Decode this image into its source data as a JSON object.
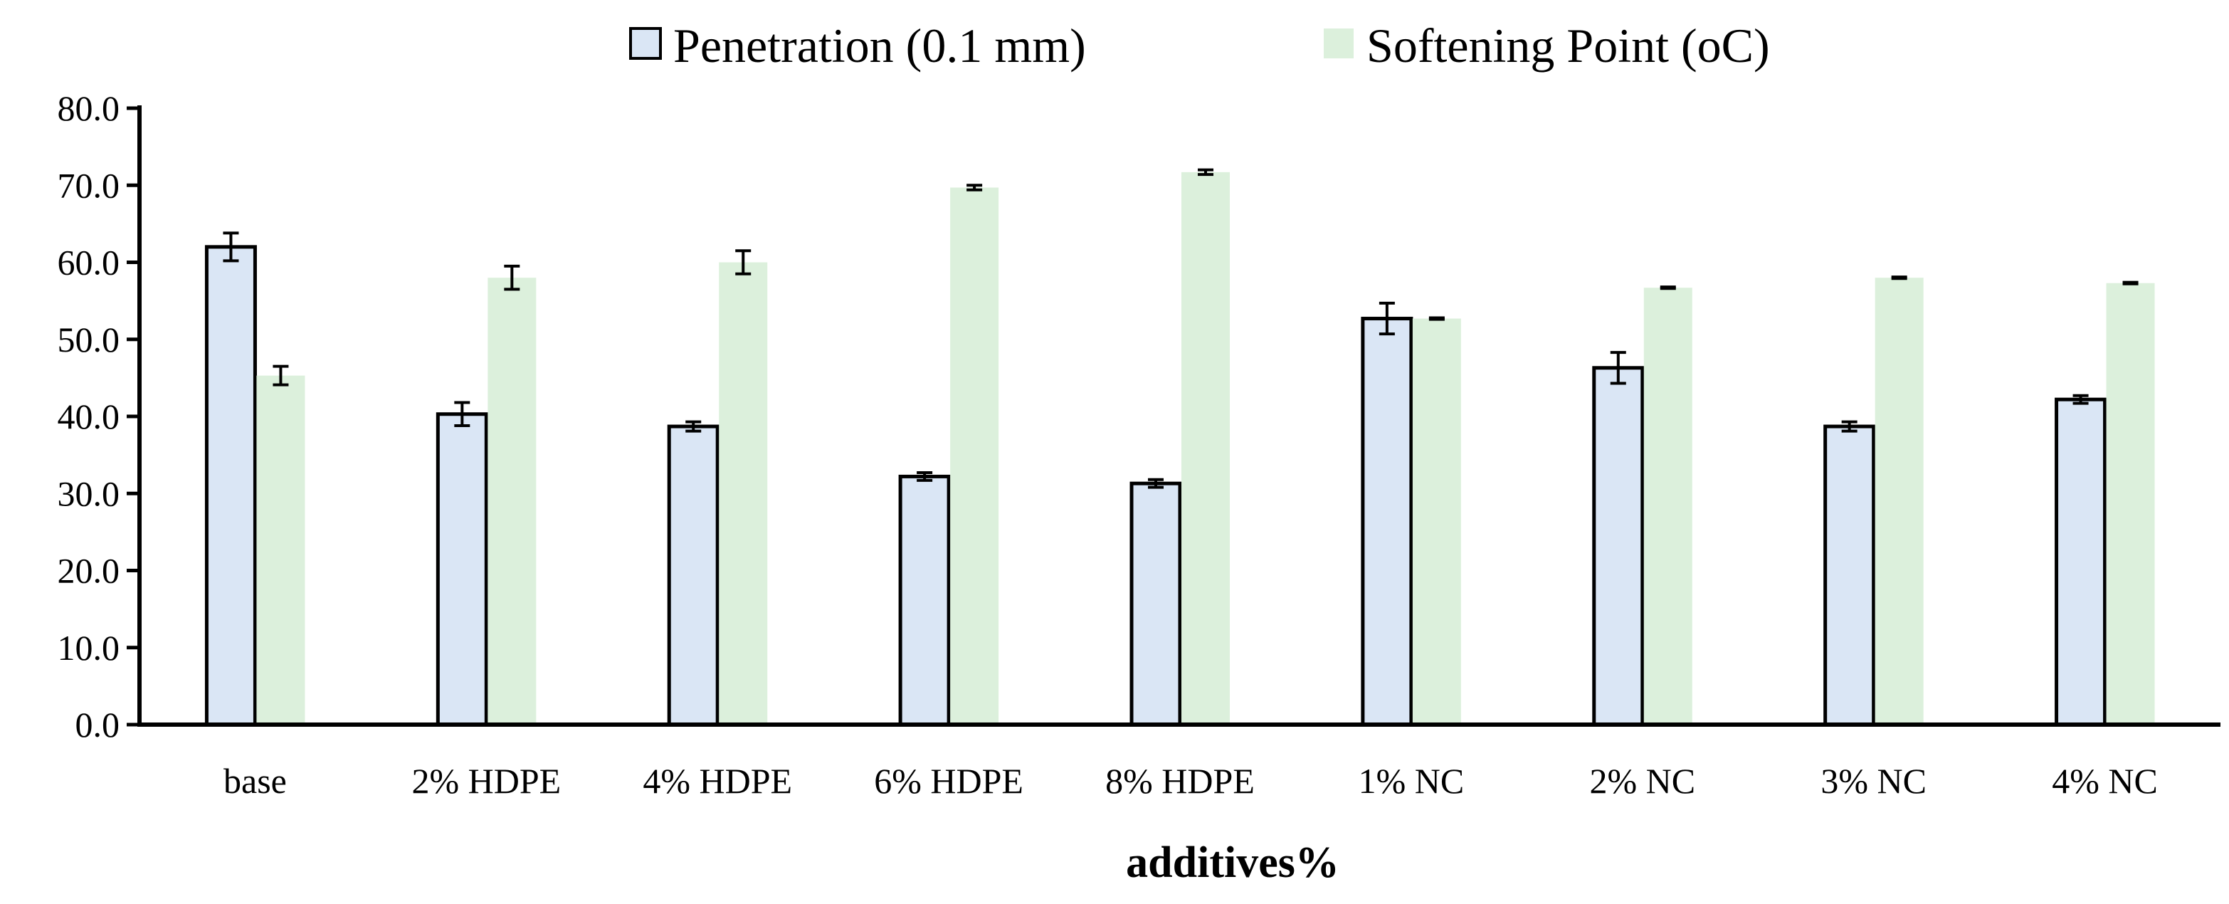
{
  "chart_data": {
    "type": "bar",
    "title": "",
    "xlabel": "additives%",
    "ylabel": "",
    "categories": [
      "base",
      "2% HDPE",
      "4% HDPE",
      "6% HDPE",
      "8% HDPE",
      "1% NC",
      "2% NC",
      "3% NC",
      "4% NC"
    ],
    "series": [
      {
        "name": "Penetration (0.1 mm)",
        "values": [
          62.0,
          40.3,
          38.7,
          32.2,
          31.3,
          52.7,
          46.3,
          38.7,
          42.2
        ],
        "errors": [
          1.8,
          1.5,
          0.6,
          0.5,
          0.5,
          2.0,
          2.0,
          0.6,
          0.5
        ],
        "color": "#dae6f5",
        "edge": "#000000"
      },
      {
        "name": "Softening Point (oC)",
        "values": [
          45.3,
          58.0,
          60.0,
          69.7,
          71.7,
          52.7,
          56.7,
          58.0,
          57.3
        ],
        "errors": [
          1.2,
          1.5,
          1.5,
          0.3,
          0.3,
          0.1,
          0.1,
          0.1,
          0.1
        ],
        "color": "#dcf0dc",
        "edge": "none"
      }
    ],
    "ylim": [
      0,
      80
    ],
    "yticks": [
      "0.0",
      "10.0",
      "20.0",
      "30.0",
      "40.0",
      "50.0",
      "60.0",
      "70.0",
      "80.0"
    ],
    "grid": false,
    "legend_position": "top"
  }
}
